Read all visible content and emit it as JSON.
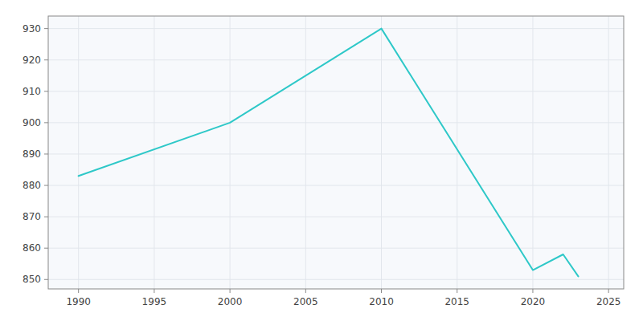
{
  "chart_data": {
    "type": "line",
    "x": [
      1990,
      2000,
      2010,
      2020,
      2022,
      2023
    ],
    "values": [
      883,
      900,
      930,
      853,
      858,
      851
    ],
    "color": "#2ec8c8",
    "xlim": [
      1988,
      2026
    ],
    "ylim": [
      847,
      934
    ],
    "xticks": [
      1990,
      1995,
      2000,
      2005,
      2010,
      2015,
      2020,
      2025
    ],
    "yticks": [
      850,
      860,
      870,
      880,
      890,
      900,
      910,
      920,
      930
    ],
    "grid": true
  }
}
